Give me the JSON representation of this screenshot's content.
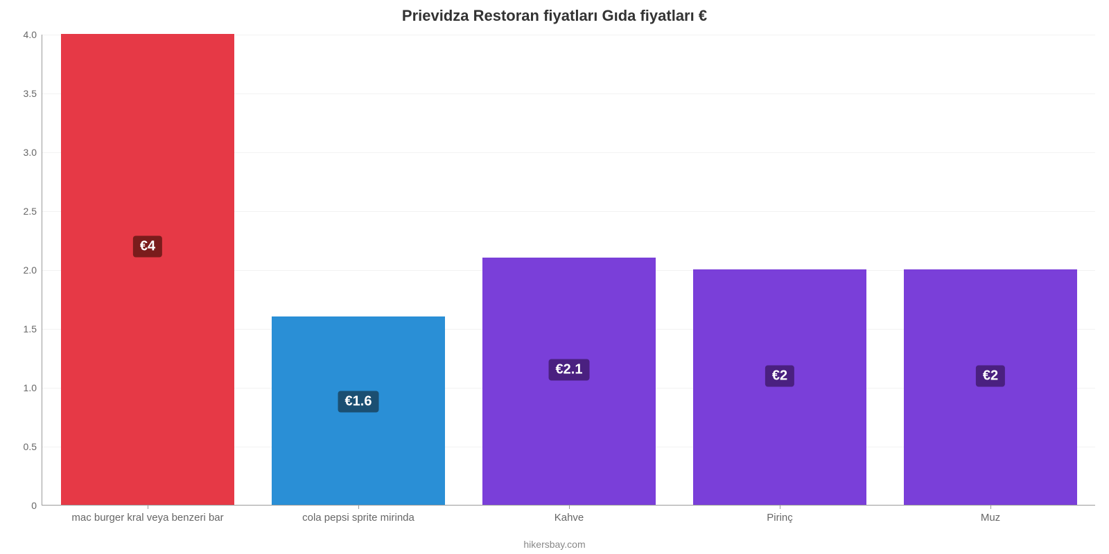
{
  "chart": {
    "type": "bar",
    "title": "Prievidza Restoran fiyatları Gıda fiyatları €",
    "title_fontsize": 22,
    "title_color": "#333333",
    "footer": "hikersbay.com",
    "footer_fontsize": 14,
    "footer_color": "#888888",
    "background_color": "#ffffff",
    "grid_color": "#f2f2f2",
    "axis_color": "#999999",
    "tick_color": "#666666",
    "tick_fontsize": 14,
    "xlabel_fontsize": 15,
    "bar_width_ratio": 0.82,
    "ylim": [
      0,
      4.0
    ],
    "yticks": [
      0,
      0.5,
      1.0,
      1.5,
      2.0,
      2.5,
      3.0,
      3.5,
      4.0
    ],
    "ytick_labels": [
      "0",
      "0.5",
      "1.0",
      "1.5",
      "2.0",
      "2.5",
      "3.0",
      "3.5",
      "4.0"
    ],
    "categories": [
      "mac burger kral veya benzeri bar",
      "cola pepsi sprite mirinda",
      "Kahve",
      "Pirinç",
      "Muz"
    ],
    "values": [
      4.0,
      1.6,
      2.1,
      2.0,
      2.0
    ],
    "value_labels": [
      "€4",
      "€1.6",
      "€2.1",
      "€2",
      "€2"
    ],
    "bar_colors": [
      "#e63946",
      "#2a8fd6",
      "#7a3fd9",
      "#7a3fd9",
      "#7a3fd9"
    ],
    "label_bg_colors": [
      "#7a1c1c",
      "#1b4f72",
      "#4a2080",
      "#4a2080",
      "#4a2080"
    ],
    "label_fontsize": 20,
    "label_y_ratio": 0.55
  }
}
